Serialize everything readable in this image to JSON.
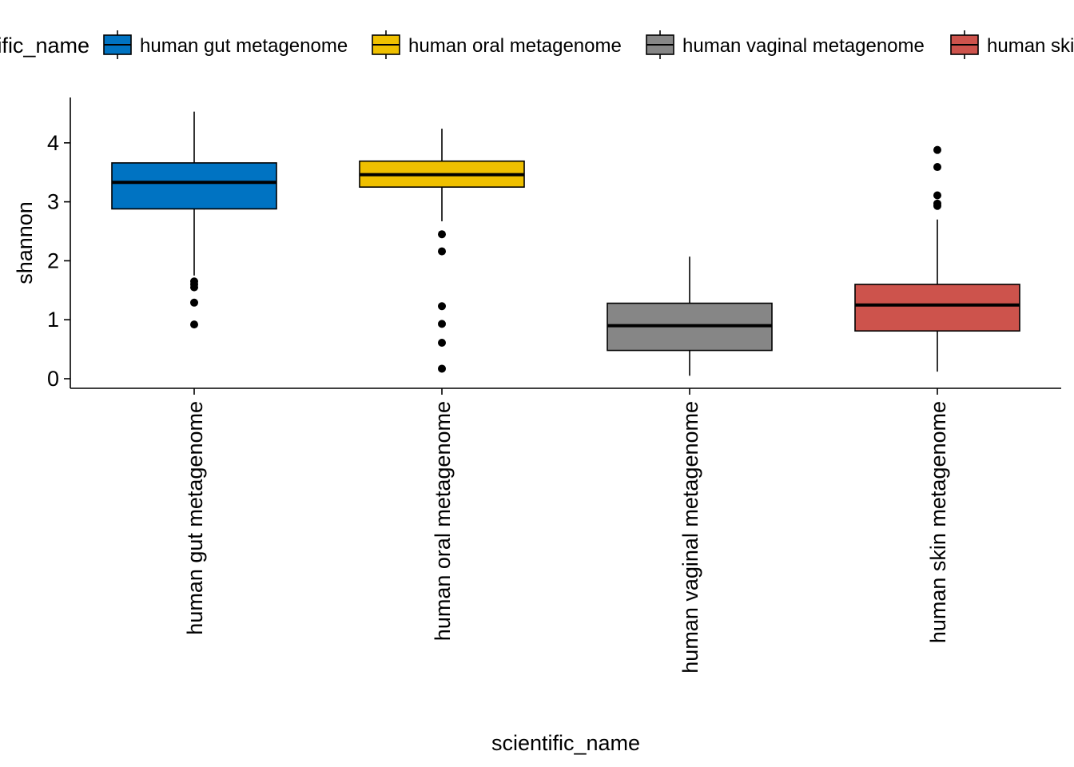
{
  "chart_data": {
    "type": "boxplot",
    "xlabel": "scientific_name",
    "ylabel": "shannon",
    "ylim": [
      -0.18,
      4.75
    ],
    "y_ticks": [
      "0",
      "1",
      "2",
      "3",
      "4"
    ],
    "legend": {
      "title": "scientific_name",
      "placement": "top",
      "entries": [
        "human gut metagenome",
        "human oral metagenome",
        "human vaginal metagenome",
        "human skin metagenome"
      ]
    },
    "categories": [
      "human gut metagenome",
      "human oral metagenome",
      "human vaginal metagenome",
      "human skin metagenome"
    ],
    "series": [
      {
        "color": "#0073C2",
        "whisker_low": 1.75,
        "q1": 2.88,
        "median": 3.33,
        "q3": 3.66,
        "whisker_high": 4.53,
        "outliers": [
          1.65,
          1.6,
          1.55,
          1.29,
          0.92
        ]
      },
      {
        "color": "#EFC000",
        "whisker_low": 2.67,
        "q1": 3.25,
        "median": 3.46,
        "q3": 3.69,
        "whisker_high": 4.24,
        "outliers": [
          2.45,
          2.16,
          1.23,
          0.93,
          0.61,
          0.17
        ]
      },
      {
        "color": "#868686",
        "whisker_low": 0.05,
        "q1": 0.48,
        "median": 0.9,
        "q3": 1.28,
        "whisker_high": 2.07,
        "outliers": []
      },
      {
        "color": "#CD534C",
        "whisker_low": 0.12,
        "q1": 0.81,
        "median": 1.25,
        "q3": 1.6,
        "whisker_high": 2.7,
        "outliers": [
          3.88,
          3.59,
          3.11,
          2.97,
          2.93
        ]
      }
    ]
  }
}
